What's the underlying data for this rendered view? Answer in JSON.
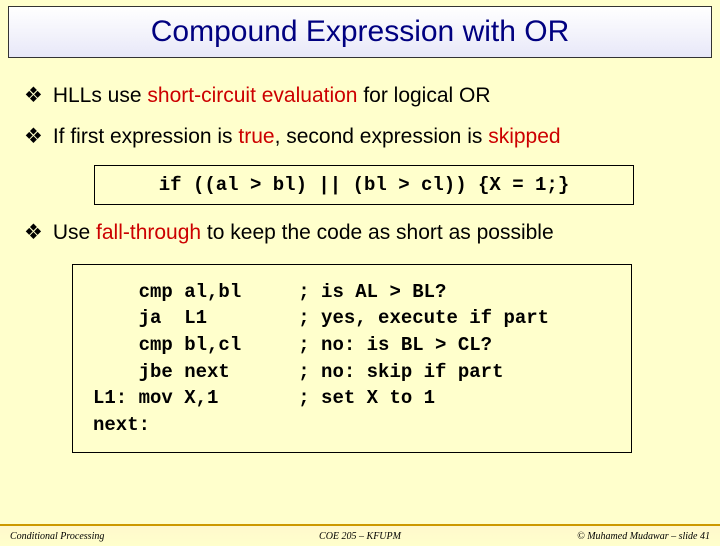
{
  "title": "Compound Expression with OR",
  "bullets": {
    "b1_pre": "HLLs use ",
    "b1_red": "short-circuit evaluation",
    "b1_post": " for logical OR",
    "b2_pre": "If first expression is ",
    "b2_red1": "true",
    "b2_mid": ", second expression is ",
    "b2_red2": "skipped",
    "b3_pre": "Use ",
    "b3_red": "fall-through",
    "b3_post": " to keep the code as short as possible"
  },
  "code1": "if ((al > bl) || (bl > cl)) {X = 1;}",
  "code2": "    cmp al,bl     ; is AL > BL?\n    ja  L1        ; yes, execute if part\n    cmp bl,cl     ; no: is BL > CL?\n    jbe next      ; no: skip if part\nL1: mov X,1       ; set X to 1\nnext:",
  "footer": {
    "left": "Conditional Processing",
    "center": "COE 205 – KFUPM",
    "right": "© Muhamed Mudawar – slide 41"
  },
  "colors": {
    "bg": "#ffffcc",
    "title": "#000080",
    "red": "#cc0000",
    "footer_border": "#cc9900"
  }
}
